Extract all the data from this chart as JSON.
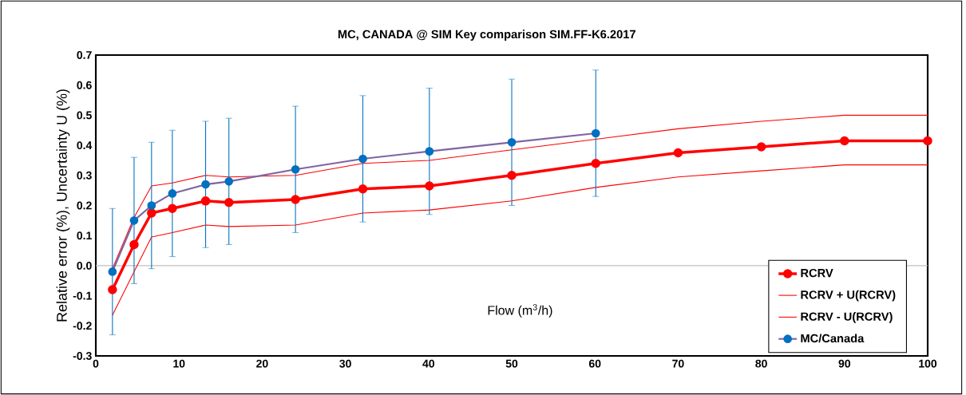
{
  "chart_data": {
    "type": "line",
    "title": "MC, CANADA @ SIM Key comparison SIM.FF-K6.2017",
    "xlabel": "Flow (m$^{3}$/h)",
    "ylabel": "Relative error (%),  Uncertainty U (%)",
    "x": [
      2,
      4.6,
      6.7,
      9.2,
      13.2,
      16,
      24,
      32.1,
      40.1,
      50,
      60.1,
      70,
      80,
      90,
      100
    ],
    "series": [
      {
        "name": "RCRV",
        "color": "#ff0000",
        "marker": "circle",
        "values": [
          -0.08,
          0.07,
          0.175,
          0.19,
          0.215,
          0.21,
          0.22,
          0.255,
          0.265,
          0.3,
          0.34,
          0.375,
          0.395,
          0.415,
          0.415
        ]
      },
      {
        "name": "RCRV + U(RCRV)",
        "color": "#ff0000",
        "marker": "none",
        "values": [
          -0.01,
          0.16,
          0.265,
          0.275,
          0.3,
          0.295,
          0.3,
          0.34,
          0.35,
          0.385,
          0.42,
          0.455,
          0.48,
          0.5,
          0.5
        ]
      },
      {
        "name": "RCRV - U(RCRV)",
        "color": "#ff0000",
        "marker": "none",
        "values": [
          -0.165,
          -0.02,
          0.095,
          0.11,
          0.135,
          0.13,
          0.135,
          0.175,
          0.185,
          0.215,
          0.26,
          0.295,
          0.315,
          0.335,
          0.335
        ]
      },
      {
        "name": "MC/Canada",
        "color": "#0070c0",
        "marker": "circle",
        "x": [
          2,
          4.6,
          6.7,
          9.2,
          13.2,
          16,
          24,
          32.1,
          40.1,
          50,
          60.1
        ],
        "values": [
          -0.02,
          0.15,
          0.2,
          0.24,
          0.27,
          0.28,
          0.32,
          0.355,
          0.38,
          0.41,
          0.44
        ],
        "errors": [
          0.21,
          0.21,
          0.21,
          0.21,
          0.21,
          0.21,
          0.21,
          0.21,
          0.21,
          0.21,
          0.21
        ]
      }
    ],
    "xlim": [
      0,
      100
    ],
    "xticks": [
      0,
      10,
      20,
      30,
      40,
      50,
      60,
      70,
      80,
      90,
      100
    ],
    "ylim": [
      -0.3,
      0.7
    ],
    "yticks": [
      -0.3,
      -0.2,
      -0.1,
      {
        "value": 0,
        "label": "0.0"
      },
      0.1,
      0.2,
      0.3,
      0.4,
      0.5,
      0.6,
      0.7
    ],
    "ref_lines": [
      {
        "axis": "y",
        "value": 0,
        "color": "#bfbfbf"
      }
    ],
    "grid": false,
    "legend": "bottom right"
  }
}
